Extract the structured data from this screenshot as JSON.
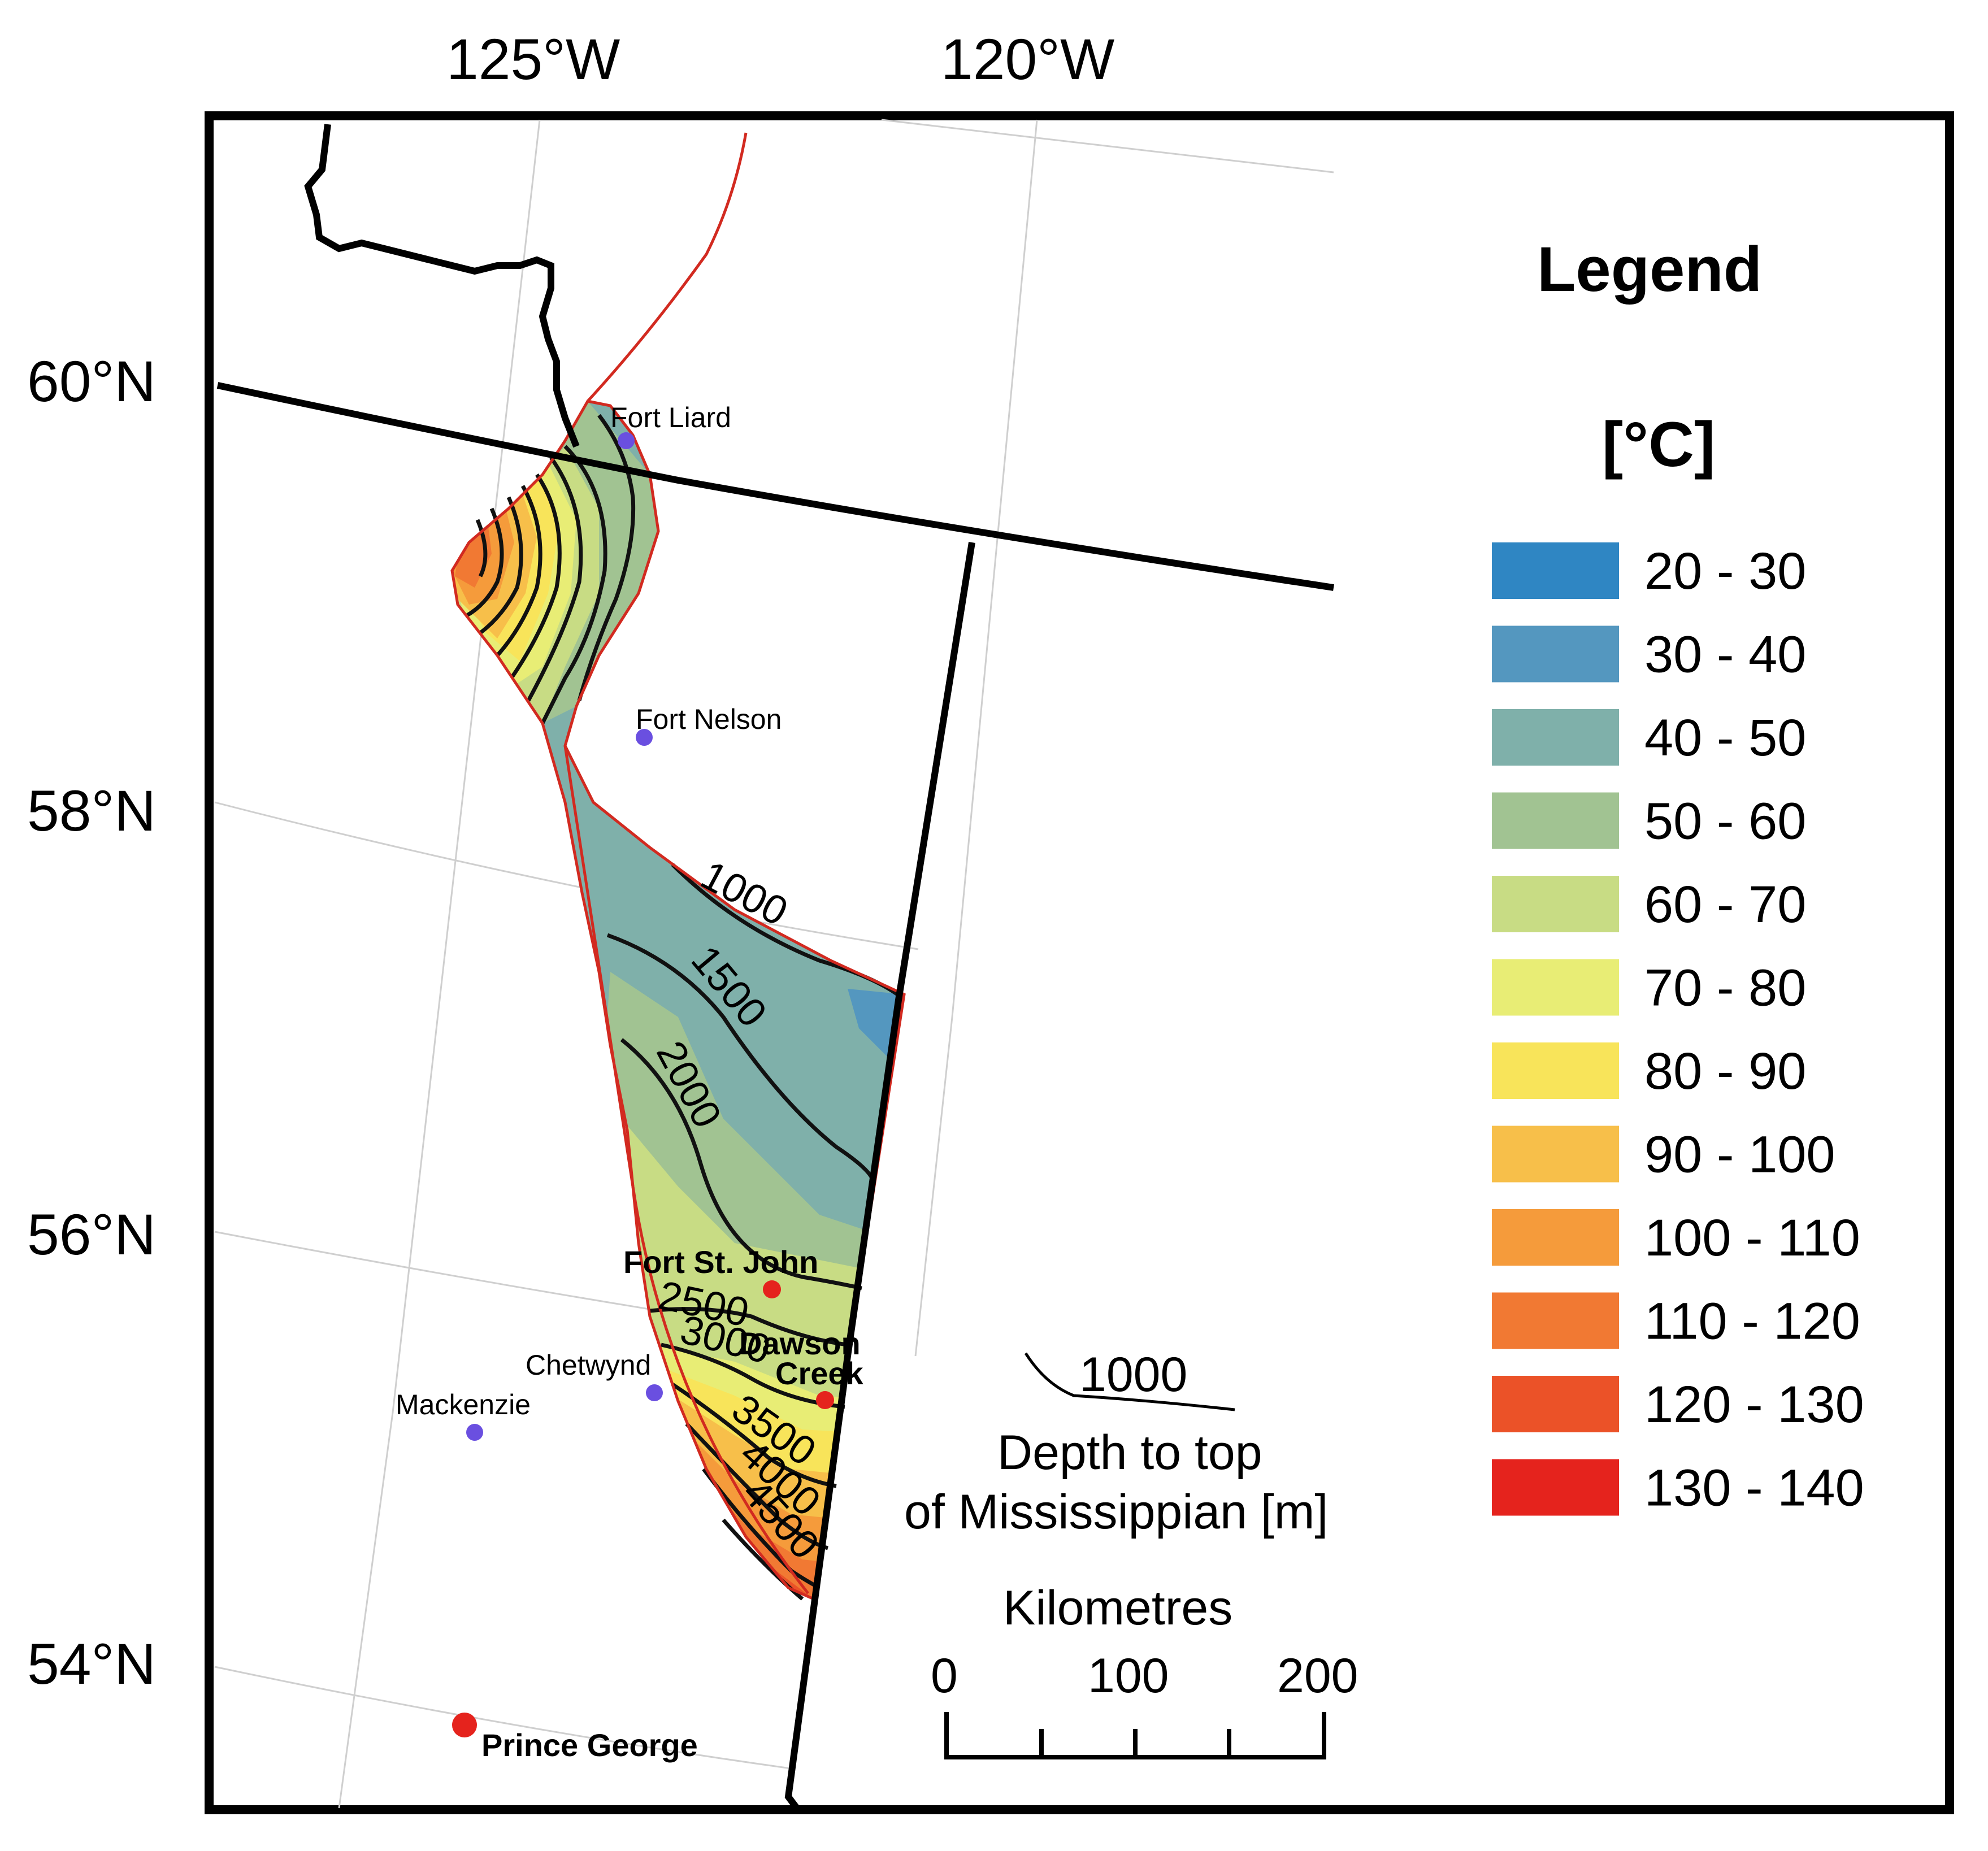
{
  "map": {
    "longitude_labels": [
      "125°W",
      "120°W"
    ],
    "latitude_labels": [
      "60°N",
      "58°N",
      "56°N",
      "54°N"
    ]
  },
  "legend": {
    "title": "Legend",
    "unit": "[°C]",
    "classes": [
      {
        "label": "20 - 30",
        "color": "#2f86c3"
      },
      {
        "label": "30 - 40",
        "color": "#5497bf"
      },
      {
        "label": "40 - 50",
        "color": "#7fb0aa"
      },
      {
        "label": "50 - 60",
        "color": "#a1c392"
      },
      {
        "label": "60 - 70",
        "color": "#c8dc84"
      },
      {
        "label": "70 - 80",
        "color": "#e8ed75"
      },
      {
        "label": "80 - 90",
        "color": "#f8e45a"
      },
      {
        "label": "90 - 100",
        "color": "#f7bf4a"
      },
      {
        "label": "100 - 110",
        "color": "#f59b3b"
      },
      {
        "label": "110 - 120",
        "color": "#f17933"
      },
      {
        "label": "120 - 130",
        "color": "#eb5228"
      },
      {
        "label": "130 - 140",
        "color": "#e5231d"
      }
    ]
  },
  "towns": [
    {
      "name": "Fort Liard",
      "marker_color": "#6a4fe0",
      "style": "small"
    },
    {
      "name": "Fort Nelson",
      "marker_color": "#6a4fe0",
      "style": "small"
    },
    {
      "name": "Fort St. John",
      "marker_color": "#e5231d",
      "style": "bold"
    },
    {
      "name": "Dawson",
      "marker_color": "#e5231d",
      "style": "bold"
    },
    {
      "name": "Creek",
      "marker_color": "#e5231d",
      "style": "bold"
    },
    {
      "name": "Chetwynd",
      "marker_color": "#6a4fe0",
      "style": "small"
    },
    {
      "name": "Mackenzie",
      "marker_color": "#6a4fe0",
      "style": "small"
    },
    {
      "name": "Prince George",
      "marker_color": "#e5231d",
      "style": "bold"
    }
  ],
  "contours": {
    "depth_labels": [
      "1000",
      "1500",
      "2000",
      "2500",
      "3000",
      "3500",
      "4000",
      "4500"
    ]
  },
  "depth_key": {
    "sample_label": "1000",
    "caption_line1": "Depth to top",
    "caption_line2": "of Mississippian [m]"
  },
  "scale_bar": {
    "title": "Kilometres",
    "ticks": [
      "0",
      "100",
      "200"
    ]
  }
}
